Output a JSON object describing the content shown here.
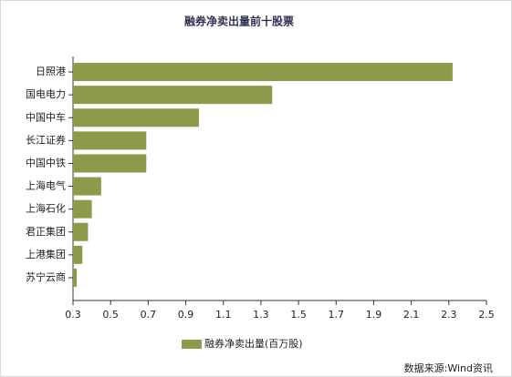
{
  "chart_data": {
    "type": "hbar",
    "title": "融券净卖出量前十股票",
    "categories": [
      "日照港",
      "国电电力",
      "中国中车",
      "长江证券",
      "中国中铁",
      "上海电气",
      "上海石化",
      "君正集团",
      "上港集团",
      "苏宁云商"
    ],
    "series": [
      {
        "name": "融券净卖出量(百万股)",
        "color": "#8b9a4b",
        "values": [
          2.32,
          1.36,
          0.97,
          0.69,
          0.69,
          0.45,
          0.4,
          0.38,
          0.35,
          0.32
        ]
      }
    ],
    "xlim": [
      0.3,
      2.5
    ],
    "xticks": [
      0.3,
      0.5,
      0.7,
      0.9,
      1.1,
      1.3,
      1.5,
      1.7,
      1.9,
      2.1,
      2.3,
      2.5
    ],
    "source": "数据来源:Wind资讯"
  }
}
